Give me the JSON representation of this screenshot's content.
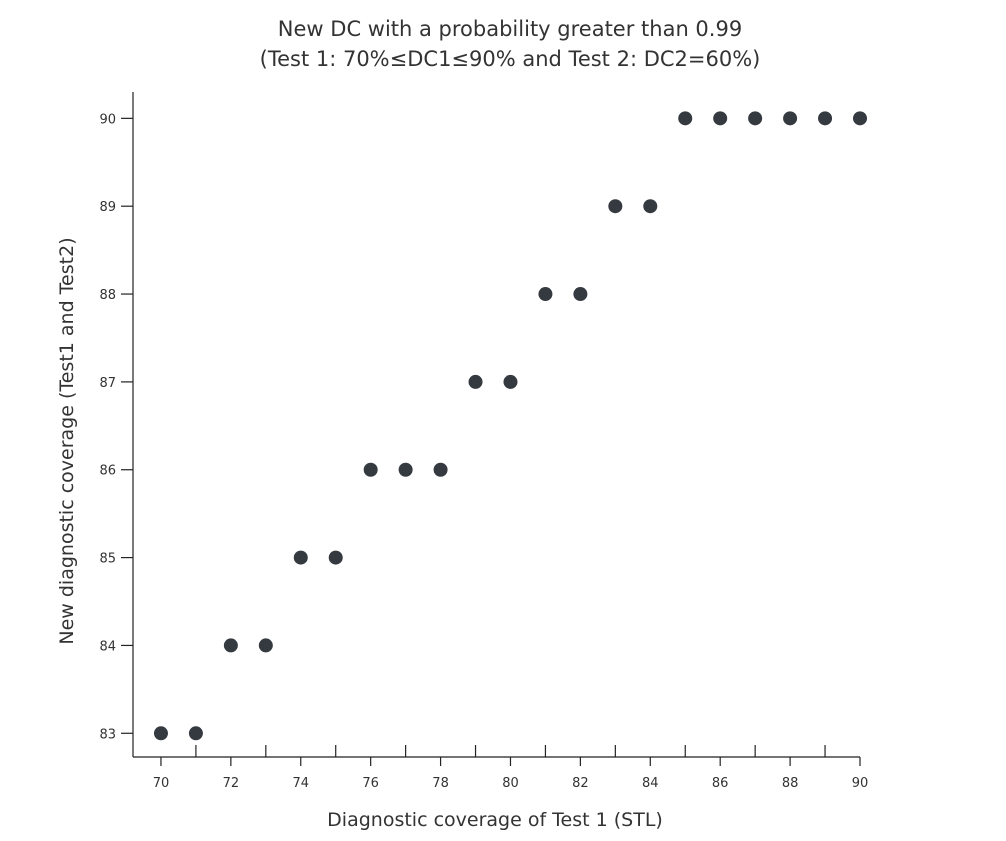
{
  "chart_data": {
    "type": "scatter",
    "title_lines": [
      "New DC with a probability greater than 0.99",
      "(Test 1: 70%≤DC1≤90% and Test 2: DC2=60%)"
    ],
    "xlabel": "Diagnostic coverage of Test 1 (STL)",
    "ylabel": "New diagnostic coverage (Test1 and Test2)",
    "xlim": [
      69.2,
      90
    ],
    "ylim": [
      82.73,
      90.3
    ],
    "x_ticks": [
      70,
      72,
      74,
      76,
      78,
      80,
      82,
      84,
      86,
      88,
      90
    ],
    "x_minor_ticks": [
      71,
      73,
      75,
      77,
      79,
      81,
      83,
      85,
      87,
      89
    ],
    "y_ticks": [
      83,
      84,
      85,
      86,
      87,
      88,
      89,
      90
    ],
    "grid": false,
    "marker_color": "#343a40",
    "points": [
      {
        "x": 70,
        "y": 83
      },
      {
        "x": 71,
        "y": 83
      },
      {
        "x": 72,
        "y": 84
      },
      {
        "x": 73,
        "y": 84
      },
      {
        "x": 74,
        "y": 85
      },
      {
        "x": 75,
        "y": 85
      },
      {
        "x": 76,
        "y": 86
      },
      {
        "x": 77,
        "y": 86
      },
      {
        "x": 78,
        "y": 86
      },
      {
        "x": 79,
        "y": 87
      },
      {
        "x": 80,
        "y": 87
      },
      {
        "x": 81,
        "y": 88
      },
      {
        "x": 82,
        "y": 88
      },
      {
        "x": 83,
        "y": 89
      },
      {
        "x": 84,
        "y": 89
      },
      {
        "x": 85,
        "y": 90
      },
      {
        "x": 86,
        "y": 90
      },
      {
        "x": 87,
        "y": 90
      },
      {
        "x": 88,
        "y": 90
      },
      {
        "x": 89,
        "y": 90
      },
      {
        "x": 90,
        "y": 90
      }
    ]
  }
}
